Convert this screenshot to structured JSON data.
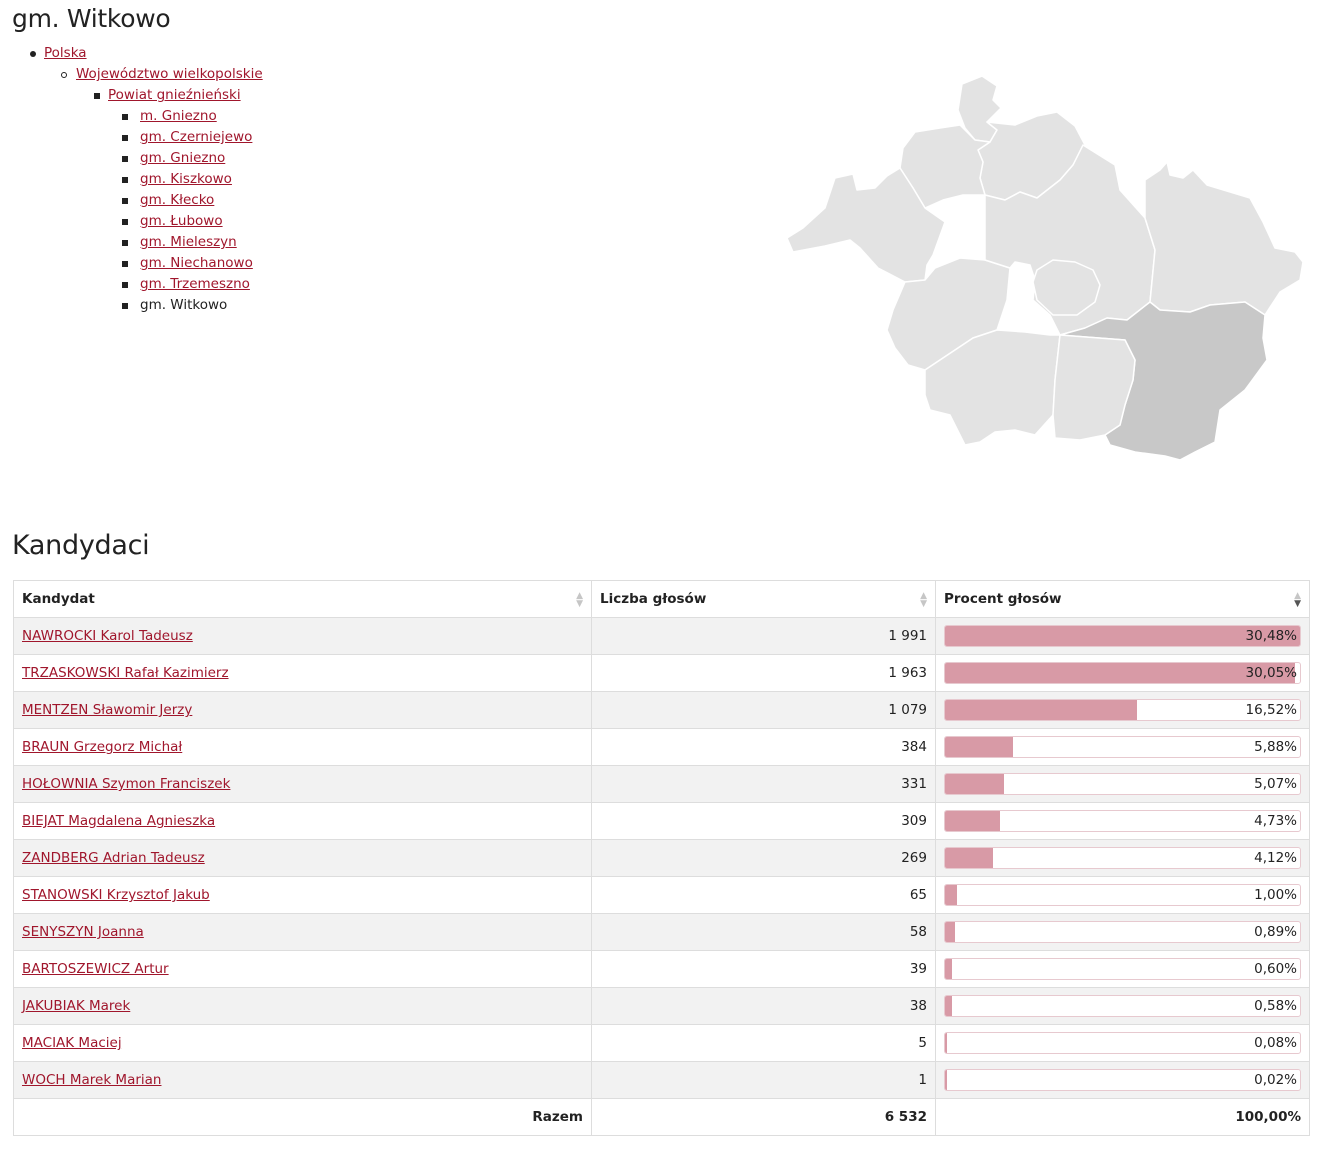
{
  "page": {
    "title": "gm. Witkowo"
  },
  "breadcrumb": {
    "country": "Polska",
    "voivodeship": "Województwo wielkopolskie",
    "county": "Powiat gnieźnieński",
    "communes": [
      {
        "label": "m. Gniezno",
        "link": true
      },
      {
        "label": "gm. Czerniejewo",
        "link": true
      },
      {
        "label": "gm. Gniezno",
        "link": true
      },
      {
        "label": "gm. Kiszkowo",
        "link": true
      },
      {
        "label": "gm. Kłecko",
        "link": true
      },
      {
        "label": "gm. Łubowo",
        "link": true
      },
      {
        "label": "gm. Mieleszyn",
        "link": true
      },
      {
        "label": "gm. Niechanowo",
        "link": true
      },
      {
        "label": "gm. Trzemeszno",
        "link": true
      },
      {
        "label": "gm. Witkowo",
        "link": false
      }
    ]
  },
  "map": {
    "fill_default": "#e3e3e3",
    "fill_selected": "#c8c8c8",
    "stroke": "#ffffff"
  },
  "candidates_section": {
    "title": "Kandydaci",
    "columns": {
      "name": "Kandydat",
      "votes": "Liczba głosów",
      "percent": "Procent głosów"
    },
    "rows": [
      {
        "name": "NAWROCKI Karol Tadeusz",
        "votes": "1 991",
        "percent_label": "30,48%",
        "percent": 30.48
      },
      {
        "name": "TRZASKOWSKI Rafał Kazimierz",
        "votes": "1 963",
        "percent_label": "30,05%",
        "percent": 30.05
      },
      {
        "name": "MENTZEN Sławomir Jerzy",
        "votes": "1 079",
        "percent_label": "16,52%",
        "percent": 16.52
      },
      {
        "name": "BRAUN Grzegorz Michał",
        "votes": "384",
        "percent_label": "5,88%",
        "percent": 5.88
      },
      {
        "name": "HOŁOWNIA Szymon Franciszek",
        "votes": "331",
        "percent_label": "5,07%",
        "percent": 5.07
      },
      {
        "name": "BIEJAT Magdalena Agnieszka",
        "votes": "309",
        "percent_label": "4,73%",
        "percent": 4.73
      },
      {
        "name": "ZANDBERG Adrian Tadeusz",
        "votes": "269",
        "percent_label": "4,12%",
        "percent": 4.12
      },
      {
        "name": "STANOWSKI Krzysztof Jakub",
        "votes": "65",
        "percent_label": "1,00%",
        "percent": 1.0
      },
      {
        "name": "SENYSZYN Joanna",
        "votes": "58",
        "percent_label": "0,89%",
        "percent": 0.89
      },
      {
        "name": "BARTOSZEWICZ Artur",
        "votes": "39",
        "percent_label": "0,60%",
        "percent": 0.6
      },
      {
        "name": "JAKUBIAK Marek",
        "votes": "38",
        "percent_label": "0,58%",
        "percent": 0.58
      },
      {
        "name": "MACIAK Maciej",
        "votes": "5",
        "percent_label": "0,08%",
        "percent": 0.08
      },
      {
        "name": "WOCH Marek Marian",
        "votes": "1",
        "percent_label": "0,02%",
        "percent": 0.02
      }
    ],
    "bar_full_scale_percent": 30.48,
    "total": {
      "label": "Razem",
      "votes": "6 532",
      "percent": "100,00%"
    }
  }
}
